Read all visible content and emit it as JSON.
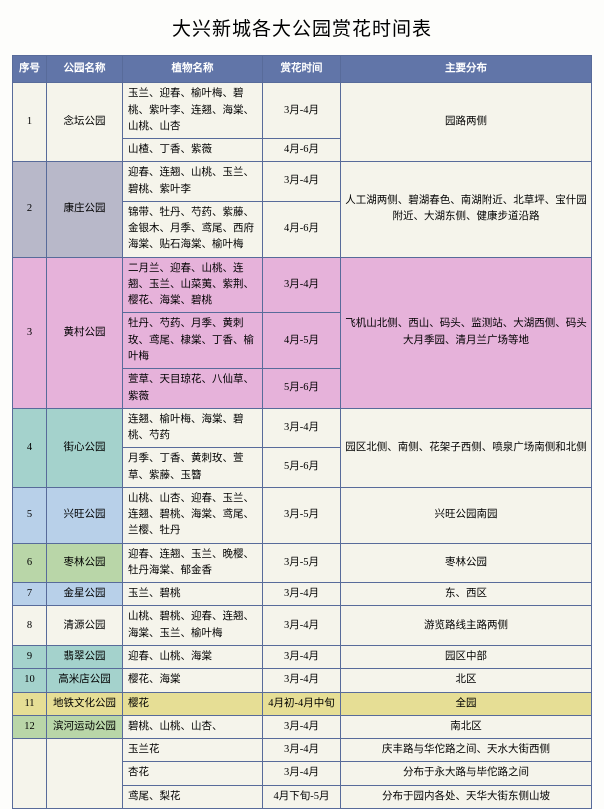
{
  "title": "大兴新城各大公园赏花时间表",
  "headers": {
    "idx": "序号",
    "park": "公园名称",
    "plant": "植物名称",
    "time": "赏花时间",
    "dist": "主要分布"
  },
  "rows": [
    {
      "idx": "1",
      "park": "念坛公园",
      "idx_bg": "bg-pale",
      "plants": [
        "玉兰、迎春、榆叶梅、碧桃、紫叶李、连翘、海棠、山桃、山杏",
        "山楂、丁香、紫薇"
      ],
      "times": [
        "3月-4月",
        "4月-6月"
      ],
      "dist": "园路两侧",
      "body_bg": "bg-pale"
    },
    {
      "idx": "2",
      "park": "康庄公园",
      "idx_bg": "bg-grey",
      "plants": [
        "迎春、连翘、山桃、玉兰、碧桃、紫叶李",
        "锦带、牡丹、芍药、紫藤、金银木、月季、鸢尾、西府海棠、贴石海棠、榆叶梅"
      ],
      "times": [
        "3月-4月",
        "4月-6月"
      ],
      "dist": "人工湖两侧、碧湖春色、南湖附近、北草坪、宝什园附近、大湖东侧、健康步道沿路",
      "body_bg": "bg-pale"
    },
    {
      "idx": "3",
      "park": "黄村公园",
      "idx_bg": "bg-pink",
      "plants": [
        "二月兰、迎春、山桃、连翘、玉兰、山菜荑、紫荆、樱花、海棠、碧桃",
        "牡丹、芍药、月季、黄刺玫、鸢尾、棣棠、丁香、榆叶梅",
        "萱草、天目琼花、八仙草、紫薇"
      ],
      "times": [
        "3月-4月",
        "4月-5月",
        "5月-6月"
      ],
      "dist": "飞机山北侧、西山、码头、监测站、大湖西侧、码头大月季园、清月兰广场等地",
      "body_bg": "bg-pink"
    },
    {
      "idx": "4",
      "park": "街心公园",
      "idx_bg": "bg-teal",
      "plants": [
        "连翘、榆叶梅、海棠、碧桃、芍药",
        "月季、丁香、黄刺玫、萱草、紫藤、玉簪"
      ],
      "times": [
        "3月-4月",
        "5月-6月"
      ],
      "dist": "园区北侧、南侧、花架子西侧、喷泉广场南侧和北侧",
      "body_bg": "bg-pale"
    },
    {
      "idx": "5",
      "park": "兴旺公园",
      "idx_bg": "bg-blue",
      "plants": [
        "山桃、山杏、迎春、玉兰、连翘、碧桃、海棠、鸢尾、兰樱、牡丹"
      ],
      "times": [
        "3月-5月"
      ],
      "dist": "兴旺公园南园",
      "body_bg": "bg-pale"
    },
    {
      "idx": "6",
      "park": "枣林公园",
      "idx_bg": "bg-green",
      "plants": [
        "迎春、连翘、玉兰、晚樱、牡丹海棠、郁金香"
      ],
      "times": [
        "3月-5月"
      ],
      "dist": "枣林公园",
      "body_bg": "bg-pale"
    },
    {
      "idx": "7",
      "park": "金星公园",
      "idx_bg": "bg-blue",
      "plants": [
        "玉兰、碧桃"
      ],
      "times": [
        "3月-4月"
      ],
      "dist": "东、西区",
      "body_bg": "bg-pale"
    },
    {
      "idx": "8",
      "park": "清源公园",
      "idx_bg": "bg-pale",
      "plants": [
        "山桃、碧桃、迎春、连翘、海棠、玉兰、榆叶梅"
      ],
      "times": [
        "3月-4月"
      ],
      "dist": "游览路线主路两侧",
      "body_bg": "bg-pale"
    },
    {
      "idx": "9",
      "park": "翡翠公园",
      "idx_bg": "bg-teal",
      "plants": [
        "迎春、山桃、海棠"
      ],
      "times": [
        "3月-4月"
      ],
      "dist": "园区中部",
      "body_bg": "bg-pale"
    },
    {
      "idx": "10",
      "park": "高米店公园",
      "idx_bg": "bg-teal",
      "plants": [
        "樱花、海棠"
      ],
      "times": [
        "3月-4月"
      ],
      "dist": "北区",
      "body_bg": "bg-pale"
    },
    {
      "idx": "11",
      "park": "地铁文化公园",
      "idx_bg": "bg-yellow",
      "plants": [
        "樱花"
      ],
      "times": [
        "4月初-4月中旬"
      ],
      "dist": "全园",
      "body_bg": "bg-yellow"
    },
    {
      "idx": "12",
      "park": "滨河运动公园",
      "idx_bg": "bg-green",
      "plants": [
        "碧桃、山桃、山杏、"
      ],
      "times": [
        "3月-4月"
      ],
      "dist": "南北区",
      "body_bg": "bg-pale"
    }
  ],
  "extra": {
    "plants": [
      "玉兰花",
      "杏花",
      "鸢尾、梨花"
    ],
    "times": [
      "3月-4月",
      "3月-4月",
      "4月下旬-5月"
    ],
    "dists": [
      "庆丰路与华佗路之间、天水大街西侧",
      "分布于永大路与毕佗路之间",
      "分布于园内各处、天华大街东侧山坡"
    ],
    "bg": "bg-pale"
  }
}
